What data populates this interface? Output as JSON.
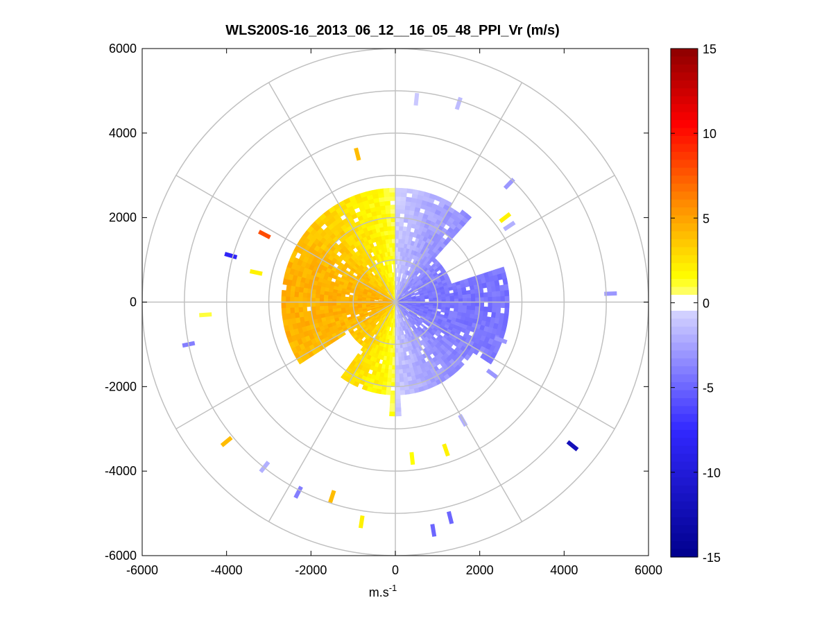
{
  "chart_data": {
    "type": "heatmap",
    "subtype": "polar-ppi-scan",
    "title": "WLS200S-16_2013_06_12__16_05_48_PPI_Vr (m/s)",
    "xlabel": "m.s",
    "xlabel_superscript": "-1",
    "ylabel": "",
    "xlim": [
      -6000,
      6000
    ],
    "ylim": [
      -6000,
      6000
    ],
    "xticks": [
      -6000,
      -4000,
      -2000,
      0,
      2000,
      4000,
      6000
    ],
    "yticks": [
      -6000,
      -4000,
      -2000,
      0,
      2000,
      4000,
      6000
    ],
    "xtick_labels": [
      "-6000",
      "-4000",
      "-2000",
      "0",
      "2000",
      "4000",
      "6000"
    ],
    "ytick_labels": [
      "-6000",
      "-4000",
      "-2000",
      "0",
      "2000",
      "4000",
      "6000"
    ],
    "polar_grid": {
      "rings": [
        1000,
        2000,
        3000,
        4000,
        5000,
        6000
      ],
      "spokes_deg": [
        0,
        30,
        60,
        90,
        120,
        150,
        180,
        210,
        240,
        270,
        300,
        330
      ]
    },
    "colorbar": {
      "label": "Vr (m/s)",
      "range": [
        -15,
        15
      ],
      "ticks": [
        15,
        10,
        5,
        0,
        -5,
        -10,
        -15
      ],
      "tick_labels": [
        "15",
        "10",
        "5",
        "0",
        "-5",
        "-10",
        "-15"
      ],
      "colormap": "blue-white-yellow-red"
    },
    "grid": true,
    "sectors": [
      {
        "name": "approaching-east",
        "az_deg": [
          0,
          180
        ],
        "r_m": [
          0,
          2700
        ],
        "vr": -3.0
      },
      {
        "name": "receding-west",
        "az_deg": [
          180,
          360
        ],
        "r_m": [
          0,
          2700
        ],
        "vr": 3.5
      }
    ],
    "scattered_returns": [
      {
        "x": 500,
        "y": 4800,
        "vr": -1
      },
      {
        "x": 1500,
        "y": 4700,
        "vr": -1.5
      },
      {
        "x": 2700,
        "y": 2800,
        "vr": -3
      },
      {
        "x": 2600,
        "y": 2000,
        "vr": 2
      },
      {
        "x": 2700,
        "y": 1800,
        "vr": -2
      },
      {
        "x": -900,
        "y": 3500,
        "vr": 4
      },
      {
        "x": -3100,
        "y": 1600,
        "vr": 8
      },
      {
        "x": -3900,
        "y": 1100,
        "vr": -8
      },
      {
        "x": -3300,
        "y": 700,
        "vr": 2
      },
      {
        "x": -4500,
        "y": -300,
        "vr": 1
      },
      {
        "x": -4900,
        "y": -1000,
        "vr": -4
      },
      {
        "x": -4000,
        "y": -3300,
        "vr": 4
      },
      {
        "x": -3100,
        "y": -3900,
        "vr": -2
      },
      {
        "x": -2300,
        "y": -4500,
        "vr": -4
      },
      {
        "x": -1500,
        "y": -4600,
        "vr": 4
      },
      {
        "x": -800,
        "y": -5200,
        "vr": 2
      },
      {
        "x": 400,
        "y": -3700,
        "vr": 1.5
      },
      {
        "x": 1200,
        "y": -3500,
        "vr": 2
      },
      {
        "x": 1300,
        "y": -5100,
        "vr": -5
      },
      {
        "x": 900,
        "y": -5400,
        "vr": -5
      },
      {
        "x": 1600,
        "y": -2800,
        "vr": -2
      },
      {
        "x": 4200,
        "y": -3400,
        "vr": -12
      },
      {
        "x": 2300,
        "y": -1700,
        "vr": -3
      },
      {
        "x": 2500,
        "y": -900,
        "vr": -3
      },
      {
        "x": 5100,
        "y": 200,
        "vr": -3
      }
    ]
  }
}
